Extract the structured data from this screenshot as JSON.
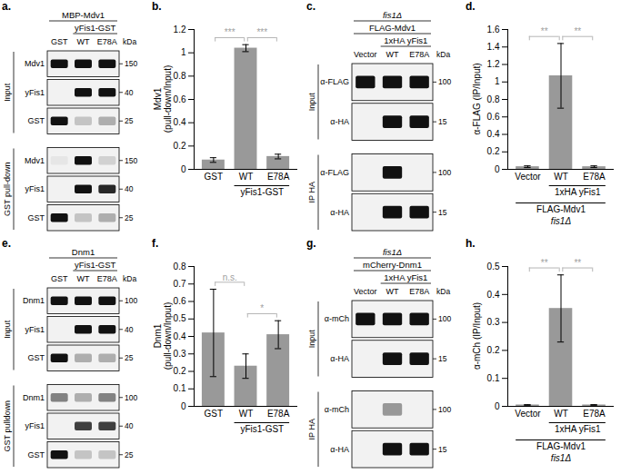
{
  "chart_data": [
    {
      "panel": "b.",
      "type": "bar",
      "y_label": [
        "Mdv1",
        "(pull-down/Input)"
      ],
      "categories": [
        "GST",
        "WT",
        "E78A"
      ],
      "values": [
        0.08,
        1.04,
        0.11
      ],
      "errors": [
        0.02,
        0.03,
        0.02
      ],
      "color": "#999999",
      "ylim": [
        0,
        1.2
      ],
      "yticks": [
        0,
        0.2,
        0.4,
        0.6,
        0.8,
        1,
        1.2
      ],
      "groups": [
        {
          "label": "yFis1-GST",
          "categories": [
            "WT",
            "E78A"
          ]
        }
      ],
      "significance": [
        {
          "from": "GST",
          "to": "WT",
          "text": "***"
        },
        {
          "from": "WT",
          "to": "E78A",
          "text": "***"
        }
      ]
    },
    {
      "panel": "d.",
      "type": "bar",
      "y_label": [
        "α-FLAG (IP/Input)"
      ],
      "categories": [
        "Vector",
        "WT",
        "E78A"
      ],
      "values": [
        0.03,
        1.07,
        0.03
      ],
      "errors": [
        0.01,
        0.37,
        0.01
      ],
      "color": "#999999",
      "ylim": [
        0,
        1.6
      ],
      "yticks": [
        0,
        0.2,
        0.4,
        0.6,
        0.8,
        1,
        1.2,
        1.4,
        1.6
      ],
      "groups": [
        {
          "label": "1xHA yFis1",
          "categories": [
            "WT",
            "E78A"
          ]
        }
      ],
      "footer": [
        "FLAG-Mdv1",
        "fis1Δ"
      ],
      "significance": [
        {
          "from": "Vector",
          "to": "WT",
          "text": "**"
        },
        {
          "from": "WT",
          "to": "E78A",
          "text": "**"
        }
      ]
    },
    {
      "panel": "f.",
      "type": "bar",
      "y_label": [
        "Dnm1",
        "(pull-down/Input)"
      ],
      "categories": [
        "GST",
        "WT",
        "E78A"
      ],
      "values": [
        0.42,
        0.23,
        0.41
      ],
      "errors": [
        0.25,
        0.07,
        0.08
      ],
      "color": "#999999",
      "ylim": [
        0,
        0.8
      ],
      "yticks": [
        0,
        0.1,
        0.2,
        0.3,
        0.4,
        0.5,
        0.6,
        0.7,
        0.8
      ],
      "groups": [
        {
          "label": "yFis1-GST",
          "categories": [
            "WT",
            "E78A"
          ]
        }
      ],
      "significance": [
        {
          "from": "GST",
          "to": "WT",
          "text": "n.s."
        },
        {
          "from": "WT",
          "to": "E78A",
          "text": "*"
        }
      ]
    },
    {
      "panel": "h.",
      "type": "bar",
      "y_label": [
        "α-mCh (IP/Input)"
      ],
      "categories": [
        "Vector",
        "WT",
        "E78A"
      ],
      "values": [
        0.005,
        0.35,
        0.005
      ],
      "errors": [
        0.001,
        0.12,
        0.001
      ],
      "color": "#999999",
      "ylim": [
        0,
        0.5
      ],
      "yticks": [
        0,
        0.1,
        0.2,
        0.3,
        0.4,
        0.5
      ],
      "groups": [
        {
          "label": "1xHA yFis1",
          "categories": [
            "WT",
            "E78A"
          ]
        }
      ],
      "footer": [
        "FLAG-Mdv1",
        "fis1Δ"
      ],
      "significance": [
        {
          "from": "Vector",
          "to": "WT",
          "text": "**"
        },
        {
          "from": "WT",
          "to": "E78A",
          "text": "**"
        }
      ]
    }
  ],
  "blots": [
    {
      "panel": "a.",
      "kda_unit": "kDa",
      "lanes": [
        "GST",
        "WT",
        "E78A"
      ],
      "headers": [
        {
          "text": "MBP-Mdv1",
          "lanes": [
            "GST",
            "WT",
            "E78A"
          ]
        },
        {
          "text": "yFis1-GST",
          "lanes": [
            "WT",
            "E78A"
          ]
        }
      ],
      "sections": [
        {
          "label": "Input",
          "rows": [
            {
              "label": "Mdv1",
              "kda": 150,
              "bands": [
                1,
                1,
                1
              ]
            },
            {
              "label": "yFis1",
              "kda": 40,
              "bands": [
                0,
                1,
                1
              ]
            },
            {
              "label": "GST",
              "kda": 25,
              "bands": [
                1,
                0.2,
                0.3
              ]
            }
          ]
        },
        {
          "label": "GST pull-down",
          "rows": [
            {
              "label": "Mdv1",
              "kda": 150,
              "bands": [
                0.05,
                1,
                0.15
              ]
            },
            {
              "label": "yFis1",
              "kda": 40,
              "bands": [
                0,
                1,
                0.9
              ]
            },
            {
              "label": "GST",
              "kda": 25,
              "bands": [
                1,
                0.2,
                0.3
              ]
            }
          ]
        }
      ]
    },
    {
      "panel": "c.",
      "kda_unit": "kDa",
      "lanes": [
        "Vector",
        "WT",
        "E78A"
      ],
      "headers": [
        {
          "text": "fis1Δ",
          "lanes": [
            "Vector",
            "WT",
            "E78A"
          ]
        },
        {
          "text": "FLAG-Mdv1",
          "lanes": [
            "Vector",
            "WT",
            "E78A"
          ]
        },
        {
          "text": "1xHA yFis1",
          "lanes": [
            "WT",
            "E78A"
          ]
        }
      ],
      "sections": [
        {
          "label": "Input",
          "rows": [
            {
              "label": "α-FLAG",
              "kda": 100,
              "bands": [
                1,
                1,
                1
              ]
            },
            {
              "label": "α-HA",
              "kda": 15,
              "bands": [
                0,
                1,
                1
              ]
            }
          ]
        },
        {
          "label": "IP HA",
          "rows": [
            {
              "label": "α-FLAG",
              "kda": 100,
              "bands": [
                0,
                1,
                0
              ]
            },
            {
              "label": "α-HA",
              "kda": 15,
              "bands": [
                0,
                1,
                1
              ]
            }
          ]
        }
      ]
    },
    {
      "panel": "e.",
      "kda_unit": "kDa",
      "lanes": [
        "GST",
        "WT",
        "E78A"
      ],
      "headers": [
        {
          "text": "Dnm1",
          "lanes": [
            "GST",
            "WT",
            "E78A"
          ]
        },
        {
          "text": "yFis1-GST",
          "lanes": [
            "WT",
            "E78A"
          ]
        }
      ],
      "sections": [
        {
          "label": "Input",
          "rows": [
            {
              "label": "Dnm1",
              "kda": 100,
              "bands": [
                1,
                1,
                1
              ]
            },
            {
              "label": "yFis1",
              "kda": 40,
              "bands": [
                0,
                1,
                1
              ]
            },
            {
              "label": "GST",
              "kda": 25,
              "bands": [
                1,
                0.3,
                0.3
              ]
            }
          ]
        },
        {
          "label": "GST pulldown",
          "rows": [
            {
              "label": "Dnm1",
              "kda": 100,
              "bands": [
                0.5,
                0.3,
                0.5
              ]
            },
            {
              "label": "yFis1",
              "kda": 40,
              "bands": [
                0,
                0.8,
                0.8
              ]
            },
            {
              "label": "GST",
              "kda": 25,
              "bands": [
                1,
                0.2,
                0.2
              ]
            }
          ]
        }
      ]
    },
    {
      "panel": "g.",
      "kda_unit": "kDa",
      "lanes": [
        "Vector",
        "WT",
        "E78A"
      ],
      "headers": [
        {
          "text": "fis1Δ",
          "lanes": [
            "Vector",
            "WT",
            "E78A"
          ]
        },
        {
          "text": "mCherry-Dnm1",
          "lanes": [
            "Vector",
            "WT",
            "E78A"
          ]
        },
        {
          "text": "1xHA yFis1",
          "lanes": [
            "WT",
            "E78A"
          ]
        }
      ],
      "sections": [
        {
          "label": "Input",
          "rows": [
            {
              "label": "α-mCh",
              "kda": 100,
              "bands": [
                1,
                1,
                1
              ]
            },
            {
              "label": "α-HA",
              "kda": 15,
              "bands": [
                0,
                1,
                1
              ]
            }
          ]
        },
        {
          "label": "IP HA",
          "rows": [
            {
              "label": "α-mCh",
              "kda": 100,
              "bands": [
                0,
                0.4,
                0
              ]
            },
            {
              "label": "α-HA",
              "kda": 15,
              "bands": [
                0,
                1,
                1
              ]
            }
          ]
        }
      ]
    }
  ]
}
